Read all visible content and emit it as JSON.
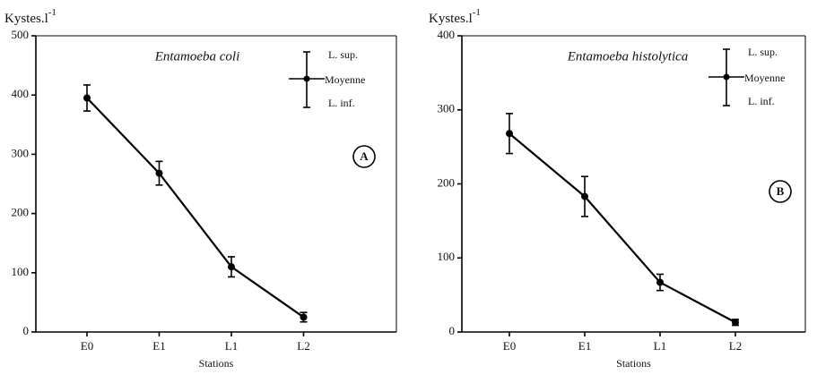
{
  "chart_data": [
    {
      "type": "line",
      "title": "Entamoeba coli",
      "y_label": "Kystes.l",
      "y_label_exponent": "-1",
      "x_label": "Stations",
      "categories": [
        "E0",
        "E1",
        "L1",
        "L2"
      ],
      "values": [
        395,
        268,
        110,
        25
      ],
      "errors": [
        22,
        20,
        17,
        8
      ],
      "ylim": [
        0,
        500
      ],
      "yticks": [
        0,
        100,
        200,
        300,
        400,
        500
      ],
      "legend": [
        "L. sup.",
        "Moyenne",
        "L. inf."
      ],
      "annotation": "A",
      "color": "#000000"
    },
    {
      "type": "line",
      "title": "Entamoeba histolytica",
      "y_label": "Kystes.l",
      "y_label_exponent": "-1",
      "x_label": "Stations",
      "categories": [
        "E0",
        "E1",
        "L1",
        "L2"
      ],
      "values": [
        268,
        183,
        67,
        13
      ],
      "errors": [
        27,
        27,
        11,
        4
      ],
      "ylim": [
        0,
        400
      ],
      "yticks": [
        0,
        100,
        200,
        300,
        400
      ],
      "legend": [
        "L. sup.",
        "Moyenne",
        "L. inf."
      ],
      "annotation": "B",
      "color": "#000000"
    }
  ]
}
